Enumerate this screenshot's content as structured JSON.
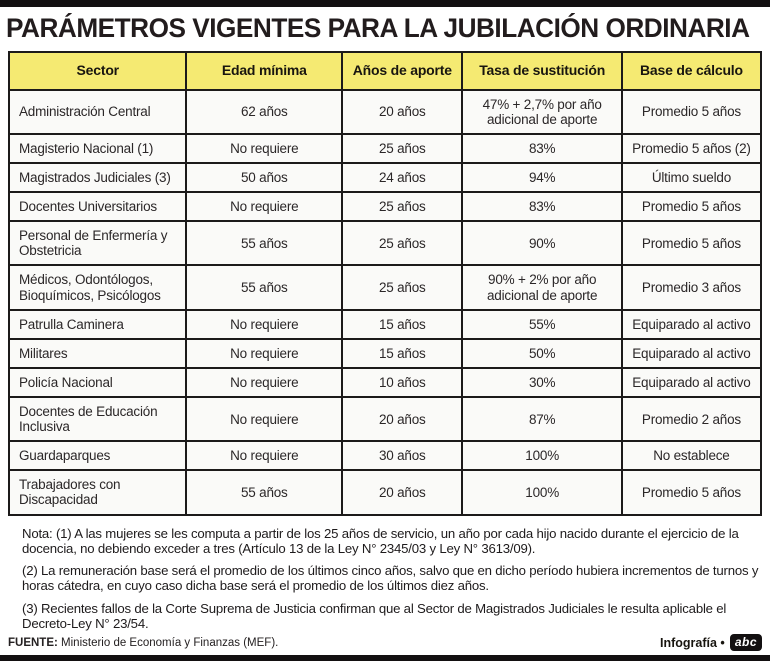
{
  "page_title": "PARÁMETROS VIGENTES PARA LA JUBILACIÓN ORDINARIA",
  "chart_data": {
    "type": "table",
    "title": "PARÁMETROS VIGENTES PARA LA JUBILACIÓN ORDINARIA",
    "columns": [
      "Sector",
      "Edad mínima",
      "Años de aporte",
      "Tasa de sustitución",
      "Base de cálculo"
    ],
    "rows": [
      [
        "Administración Central",
        "62 años",
        "20 años",
        "47% + 2,7% por año adicional de aporte",
        "Promedio 5 años"
      ],
      [
        "Magisterio Nacional (1)",
        "No requiere",
        "25 años",
        "83%",
        "Promedio 5 años (2)"
      ],
      [
        "Magistrados Judiciales (3)",
        "50 años",
        "24 años",
        "94%",
        "Último sueldo"
      ],
      [
        "Docentes Universitarios",
        "No requiere",
        "25 años",
        "83%",
        "Promedio 5 años"
      ],
      [
        "Personal de Enfermería y Obstetricia",
        "55 años",
        "25 años",
        "90%",
        "Promedio 5 años"
      ],
      [
        "Médicos, Odontólogos, Bioquímicos, Psicólogos",
        "55 años",
        "25 años",
        "90% + 2% por año adicional de aporte",
        "Promedio 3 años"
      ],
      [
        "Patrulla Caminera",
        "No requiere",
        "15 años",
        "55%",
        "Equiparado al activo"
      ],
      [
        "Militares",
        "No requiere",
        "15 años",
        "50%",
        "Equiparado al activo"
      ],
      [
        "Policía Nacional",
        "No requiere",
        "10 años",
        "30%",
        "Equiparado al activo"
      ],
      [
        "Docentes de Educación Inclusiva",
        "No requiere",
        "20 años",
        "87%",
        "Promedio 2 años"
      ],
      [
        "Guardaparques",
        "No requiere",
        "30 años",
        "100%",
        "No establece"
      ],
      [
        "Trabajadores con Discapacidad",
        "55 años",
        "20 años",
        "100%",
        "Promedio 5 años"
      ]
    ],
    "notes": [
      "Nota: (1) A las mujeres se les computa a partir de los 25 años de servicio, un año por cada hijo nacido durante el ejercicio de la docencia, no debiendo exceder a tres (Artículo 13 de la Ley N° 2345/03 y Ley N° 3613/09).",
      "(2) La remuneración base será el promedio de los últimos cinco años, salvo que en dicho período hubiera incrementos de turnos y horas cátedra, en cuyo caso dicha base será el promedio de los últimos diez años.",
      "(3) Recientes fallos de la Corte Suprema de Justicia confirman que al Sector de Magistrados Judiciales le resulta aplicable el Decreto-Ley N° 23/54."
    ]
  },
  "footer": {
    "source_label": "FUENTE:",
    "source_text": "Ministerio de Economía y Finanzas (MEF).",
    "credit_label": "Infografía •",
    "logo_text": "abc"
  },
  "colors": {
    "header_yellow": "#F5EA72",
    "border_black": "#1C1A1A",
    "bar_black": "#131011",
    "cell_bg": "#FAFAF8",
    "text": "#242021"
  }
}
